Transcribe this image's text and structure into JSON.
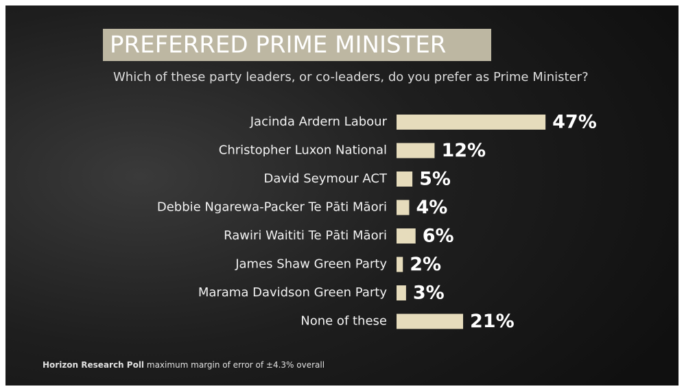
{
  "chart_data": {
    "type": "bar",
    "orientation": "horizontal",
    "title": "PREFERRED PRIME MINISTER",
    "subtitle": "Which of these party leaders, or co-leaders, do you prefer as Prime Minister?",
    "categories": [
      "Jacinda Ardern Labour",
      "Christopher Luxon National",
      "David Seymour ACT",
      "Debbie Ngarewa-Packer Te Pāti Māori",
      "Rawiri Waititi Te Pāti Māori",
      "James Shaw Green Party",
      "Marama Davidson Green Party",
      "None of these"
    ],
    "values": [
      47,
      12,
      5,
      4,
      6,
      2,
      3,
      21
    ],
    "value_labels": [
      "47%",
      "12%",
      "5%",
      "4%",
      "6%",
      "2%",
      "3%",
      "21%"
    ],
    "color": "#e6dcbc",
    "source": "Horizon Research Poll",
    "note": "maximum margin of error of ±4.3% overall"
  }
}
